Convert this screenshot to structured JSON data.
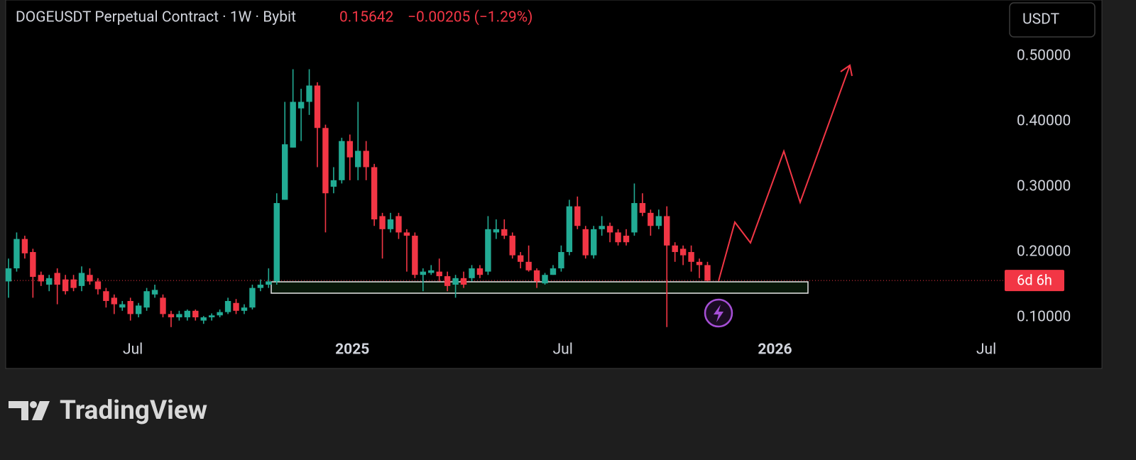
{
  "chart_data": {
    "type": "candlestick",
    "title": "DOGEUSDT Perpetual Contract · 1W · Bybit",
    "last_price": 0.15642,
    "change": "−0.00205 (−1.29%)",
    "currency": "USDT",
    "countdown": "6d 6h",
    "up_color": "#22ab94",
    "down_color": "#f23645",
    "x": [
      0,
      1,
      2,
      3,
      4,
      5,
      6,
      7,
      8,
      9,
      10,
      11,
      12,
      13,
      14,
      15,
      16,
      17,
      18,
      19,
      20,
      21,
      22,
      23,
      24,
      25,
      26,
      27,
      28,
      29,
      30,
      31,
      32,
      33,
      34,
      35,
      36,
      37,
      38,
      39,
      40,
      41,
      42,
      43,
      44,
      45,
      46,
      47,
      48,
      49,
      50,
      51,
      52,
      53,
      54,
      55,
      56,
      57,
      58,
      59,
      60,
      61,
      62,
      63,
      64,
      65,
      66,
      67,
      68,
      69,
      70,
      71,
      72,
      73,
      74,
      75,
      76,
      77,
      78,
      79,
      80,
      81,
      82,
      83,
      84,
      85,
      86
    ],
    "open": [
      0.155,
      0.175,
      0.22,
      0.2,
      0.165,
      0.15,
      0.168,
      0.158,
      0.158,
      0.148,
      0.165,
      0.155,
      0.14,
      0.13,
      0.115,
      0.125,
      0.105,
      0.115,
      0.135,
      0.13,
      0.105,
      0.1,
      0.1,
      0.11,
      0.095,
      0.1,
      0.103,
      0.108,
      0.122,
      0.11,
      0.115,
      0.145,
      0.15,
      0.155,
      0.28,
      0.36,
      0.42,
      0.43,
      0.455,
      0.39,
      0.3,
      0.31,
      0.37,
      0.33,
      0.355,
      0.33,
      0.255,
      0.235,
      0.255,
      0.23,
      0.225,
      0.165,
      0.168,
      0.17,
      0.163,
      0.15,
      0.16,
      0.16,
      0.175,
      0.17,
      0.23,
      0.235,
      0.225,
      0.195,
      0.185,
      0.172,
      0.152,
      0.165,
      0.175,
      0.2,
      0.27,
      0.235,
      0.195,
      0.235,
      0.24,
      0.23,
      0.225,
      0.23,
      0.275,
      0.26,
      0.24,
      0.255,
      0.21,
      0.205,
      0.2,
      0.185,
      0.18
    ],
    "high": [
      0.19,
      0.23,
      0.225,
      0.205,
      0.17,
      0.165,
      0.175,
      0.165,
      0.165,
      0.178,
      0.175,
      0.16,
      0.145,
      0.135,
      0.125,
      0.13,
      0.122,
      0.145,
      0.15,
      0.135,
      0.11,
      0.11,
      0.112,
      0.112,
      0.102,
      0.106,
      0.112,
      0.13,
      0.128,
      0.12,
      0.15,
      0.158,
      0.175,
      0.29,
      0.43,
      0.48,
      0.45,
      0.48,
      0.46,
      0.395,
      0.33,
      0.375,
      0.38,
      0.43,
      0.37,
      0.335,
      0.26,
      0.26,
      0.26,
      0.235,
      0.23,
      0.175,
      0.18,
      0.19,
      0.17,
      0.165,
      0.17,
      0.18,
      0.18,
      0.255,
      0.25,
      0.25,
      0.23,
      0.2,
      0.21,
      0.175,
      0.168,
      0.18,
      0.21,
      0.28,
      0.285,
      0.24,
      0.24,
      0.255,
      0.245,
      0.235,
      0.235,
      0.305,
      0.29,
      0.265,
      0.265,
      0.27,
      0.215,
      0.21,
      0.21,
      0.19,
      0.185
    ],
    "low": [
      0.13,
      0.17,
      0.19,
      0.13,
      0.148,
      0.14,
      0.12,
      0.135,
      0.14,
      0.14,
      0.15,
      0.135,
      0.115,
      0.105,
      0.11,
      0.095,
      0.1,
      0.11,
      0.13,
      0.1,
      0.085,
      0.095,
      0.095,
      0.095,
      0.09,
      0.095,
      0.1,
      0.105,
      0.105,
      0.105,
      0.112,
      0.14,
      0.145,
      0.15,
      0.28,
      0.36,
      0.37,
      0.41,
      0.33,
      0.23,
      0.29,
      0.305,
      0.31,
      0.31,
      0.31,
      0.24,
      0.19,
      0.23,
      0.22,
      0.17,
      0.16,
      0.14,
      0.165,
      0.155,
      0.14,
      0.13,
      0.145,
      0.155,
      0.16,
      0.165,
      0.22,
      0.22,
      0.19,
      0.175,
      0.17,
      0.145,
      0.15,
      0.165,
      0.17,
      0.195,
      0.235,
      0.19,
      0.19,
      0.225,
      0.215,
      0.21,
      0.21,
      0.225,
      0.255,
      0.225,
      0.235,
      0.085,
      0.185,
      0.18,
      0.17,
      0.16,
      0.155
    ],
    "close": [
      0.175,
      0.22,
      0.198,
      0.162,
      0.155,
      0.16,
      0.15,
      0.14,
      0.145,
      0.168,
      0.155,
      0.143,
      0.125,
      0.12,
      0.12,
      0.105,
      0.118,
      0.14,
      0.142,
      0.105,
      0.1,
      0.105,
      0.11,
      0.1,
      0.1,
      0.103,
      0.108,
      0.125,
      0.11,
      0.115,
      0.145,
      0.15,
      0.155,
      0.275,
      0.365,
      0.43,
      0.43,
      0.455,
      0.39,
      0.29,
      0.31,
      0.37,
      0.345,
      0.355,
      0.33,
      0.25,
      0.235,
      0.25,
      0.23,
      0.225,
      0.165,
      0.17,
      0.172,
      0.163,
      0.148,
      0.16,
      0.15,
      0.175,
      0.165,
      0.235,
      0.235,
      0.225,
      0.195,
      0.185,
      0.172,
      0.155,
      0.165,
      0.175,
      0.2,
      0.27,
      0.24,
      0.195,
      0.235,
      0.24,
      0.23,
      0.215,
      0.215,
      0.275,
      0.26,
      0.24,
      0.255,
      0.21,
      0.2,
      0.195,
      0.185,
      0.18,
      0.156
    ],
    "xlim": [
      -0.35,
      122.3
    ],
    "xticks": [
      {
        "value": 15.3,
        "label": "Jul"
      },
      {
        "value": 42.3,
        "label": "2025"
      },
      {
        "value": 68.2,
        "label": "Jul"
      },
      {
        "value": 94.3,
        "label": "2026"
      },
      {
        "value": 120.3,
        "label": "Jul"
      }
    ],
    "ylim": [
      0.075,
      0.586
    ],
    "yticks": [
      {
        "value": 0.1,
        "label": "0.10000"
      },
      {
        "value": 0.2,
        "label": "0.20000"
      },
      {
        "value": 0.3,
        "label": "0.30000"
      },
      {
        "value": 0.4,
        "label": "0.40000"
      },
      {
        "value": 0.5,
        "label": "0.50000"
      }
    ]
  },
  "footer": {
    "brand": "TradingView"
  }
}
